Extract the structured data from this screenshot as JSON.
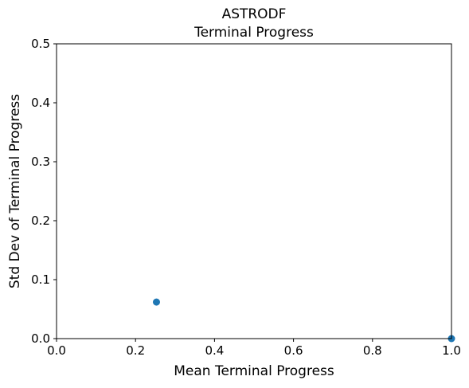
{
  "chart_data": {
    "type": "scatter",
    "title": "ASTRODF",
    "subtitle": "Terminal Progress",
    "xlabel": "Mean Terminal Progress",
    "ylabel": "Std Dev of Terminal Progress",
    "xlim": [
      0.0,
      1.0
    ],
    "ylim": [
      0.0,
      0.5
    ],
    "xticks": [
      "0.0",
      "0.2",
      "0.4",
      "0.6",
      "0.8",
      "1.0"
    ],
    "yticks": [
      "0.0",
      "0.1",
      "0.2",
      "0.3",
      "0.4",
      "0.5"
    ],
    "grid": false,
    "points": [
      {
        "x": 0.253,
        "y": 0.062
      },
      {
        "x": 1.0,
        "y": 0.0
      }
    ],
    "marker_color": "#1f77b4"
  }
}
